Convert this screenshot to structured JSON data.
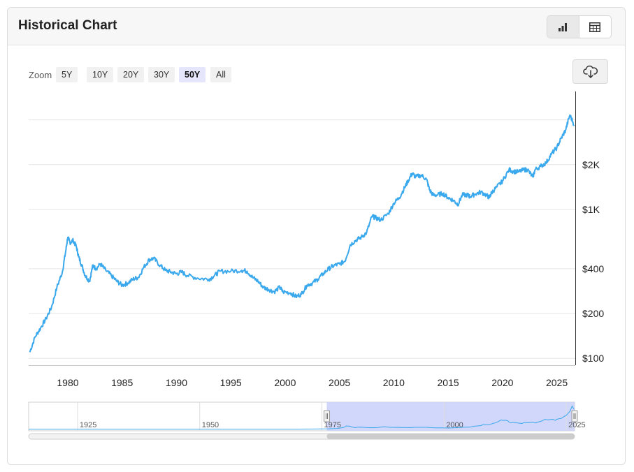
{
  "header": {
    "title": "Historical Chart"
  },
  "view_toggle": {
    "chart_icon": "bar-chart-icon",
    "table_icon": "table-icon",
    "active": "chart"
  },
  "zoom": {
    "label": "Zoom",
    "buttons": [
      "5Y",
      "10Y",
      "20Y",
      "30Y",
      "50Y",
      "All"
    ],
    "selected": "50Y"
  },
  "download": {
    "icon": "cloud-download-icon"
  },
  "colors": {
    "line": "#3aa8ec",
    "navigator_fill": "#ccd3fb",
    "grid": "#e6e6e6",
    "scrollbar": "#cccccc"
  },
  "navigator": {
    "x_ticks": [
      "1925",
      "1950",
      "1975",
      "2000",
      "2025"
    ],
    "x_tick_values": [
      1925,
      1950,
      1975,
      2000,
      2025
    ],
    "range_start": 1976,
    "range_end": 2026.7,
    "full_start": 1915,
    "full_end": 2026.7
  },
  "chart_data": {
    "type": "line",
    "title": "",
    "xlabel": "",
    "ylabel": "",
    "y_scale": "log",
    "y_ticks": [
      "$100",
      "$200",
      "$400",
      "$1K",
      "$2K"
    ],
    "y_tick_values": [
      100,
      200,
      400,
      1000,
      2000
    ],
    "y_gridlines": [
      100,
      200,
      400,
      1000,
      2000,
      4000
    ],
    "x_ticks": [
      "1980",
      "1985",
      "1990",
      "1995",
      "2000",
      "2005",
      "2010",
      "2015",
      "2020",
      "2025"
    ],
    "x_tick_values": [
      1980,
      1985,
      1990,
      1995,
      2000,
      2005,
      2010,
      2015,
      2020,
      2025
    ],
    "xlim": [
      1976.4,
      2026.7
    ],
    "ylim": [
      90,
      6200
    ],
    "grid": true,
    "series": [
      {
        "x": [
          1976.5,
          1977,
          1977.5,
          1978,
          1978.5,
          1979,
          1979.5,
          1979.8,
          1980.0,
          1980.2,
          1980.5,
          1980.8,
          1981.0,
          1981.3,
          1981.6,
          1982.0,
          1982.3,
          1982.6,
          1983.0,
          1983.5,
          1984.0,
          1984.5,
          1985.0,
          1985.5,
          1986.0,
          1986.5,
          1987.0,
          1987.5,
          1987.9,
          1988.5,
          1989.0,
          1989.5,
          1990.0,
          1990.5,
          1991.0,
          1992.0,
          1993.0,
          1993.5,
          1994.0,
          1995.0,
          1996.0,
          1996.5,
          1997.0,
          1997.5,
          1998.0,
          1998.5,
          1999.0,
          1999.5,
          1999.8,
          2000.5,
          2001.0,
          2001.5,
          2002.0,
          2002.5,
          2003.0,
          2003.5,
          2004.0,
          2004.5,
          2005.0,
          2005.5,
          2006.0,
          2006.5,
          2007.0,
          2007.5,
          2008.0,
          2008.3,
          2008.8,
          2009.5,
          2010.0,
          2010.5,
          2011.0,
          2011.3,
          2011.7,
          2012.0,
          2012.5,
          2013.0,
          2013.3,
          2013.6,
          2014.0,
          2014.5,
          2015.0,
          2015.5,
          2015.9,
          2016.3,
          2016.8,
          2017.0,
          2017.5,
          2018.0,
          2018.5,
          2018.8,
          2019.0,
          2019.5,
          2020.0,
          2020.6,
          2021.0,
          2021.5,
          2022.0,
          2022.3,
          2022.8,
          2023.0,
          2023.5,
          2024.0,
          2024.5,
          2025.0,
          2025.4,
          2025.8,
          2026.2,
          2026.6
        ],
        "y": [
          110,
          140,
          160,
          185,
          220,
          300,
          380,
          520,
          650,
          600,
          620,
          560,
          480,
          420,
          360,
          330,
          420,
          400,
          430,
          390,
          360,
          330,
          310,
          320,
          340,
          350,
          410,
          460,
          470,
          420,
          390,
          380,
          370,
          380,
          360,
          345,
          340,
          360,
          385,
          385,
          390,
          385,
          350,
          330,
          300,
          290,
          280,
          300,
          280,
          275,
          260,
          270,
          310,
          320,
          340,
          370,
          400,
          420,
          430,
          450,
          580,
          620,
          650,
          700,
          900,
          880,
          850,
          940,
          1100,
          1200,
          1400,
          1550,
          1750,
          1650,
          1700,
          1600,
          1350,
          1250,
          1250,
          1280,
          1200,
          1150,
          1080,
          1250,
          1250,
          1220,
          1270,
          1310,
          1250,
          1200,
          1300,
          1420,
          1550,
          1850,
          1800,
          1790,
          1850,
          1850,
          1650,
          1850,
          1950,
          2050,
          2350,
          2600,
          3000,
          3400,
          4300,
          3700
        ]
      }
    ]
  }
}
